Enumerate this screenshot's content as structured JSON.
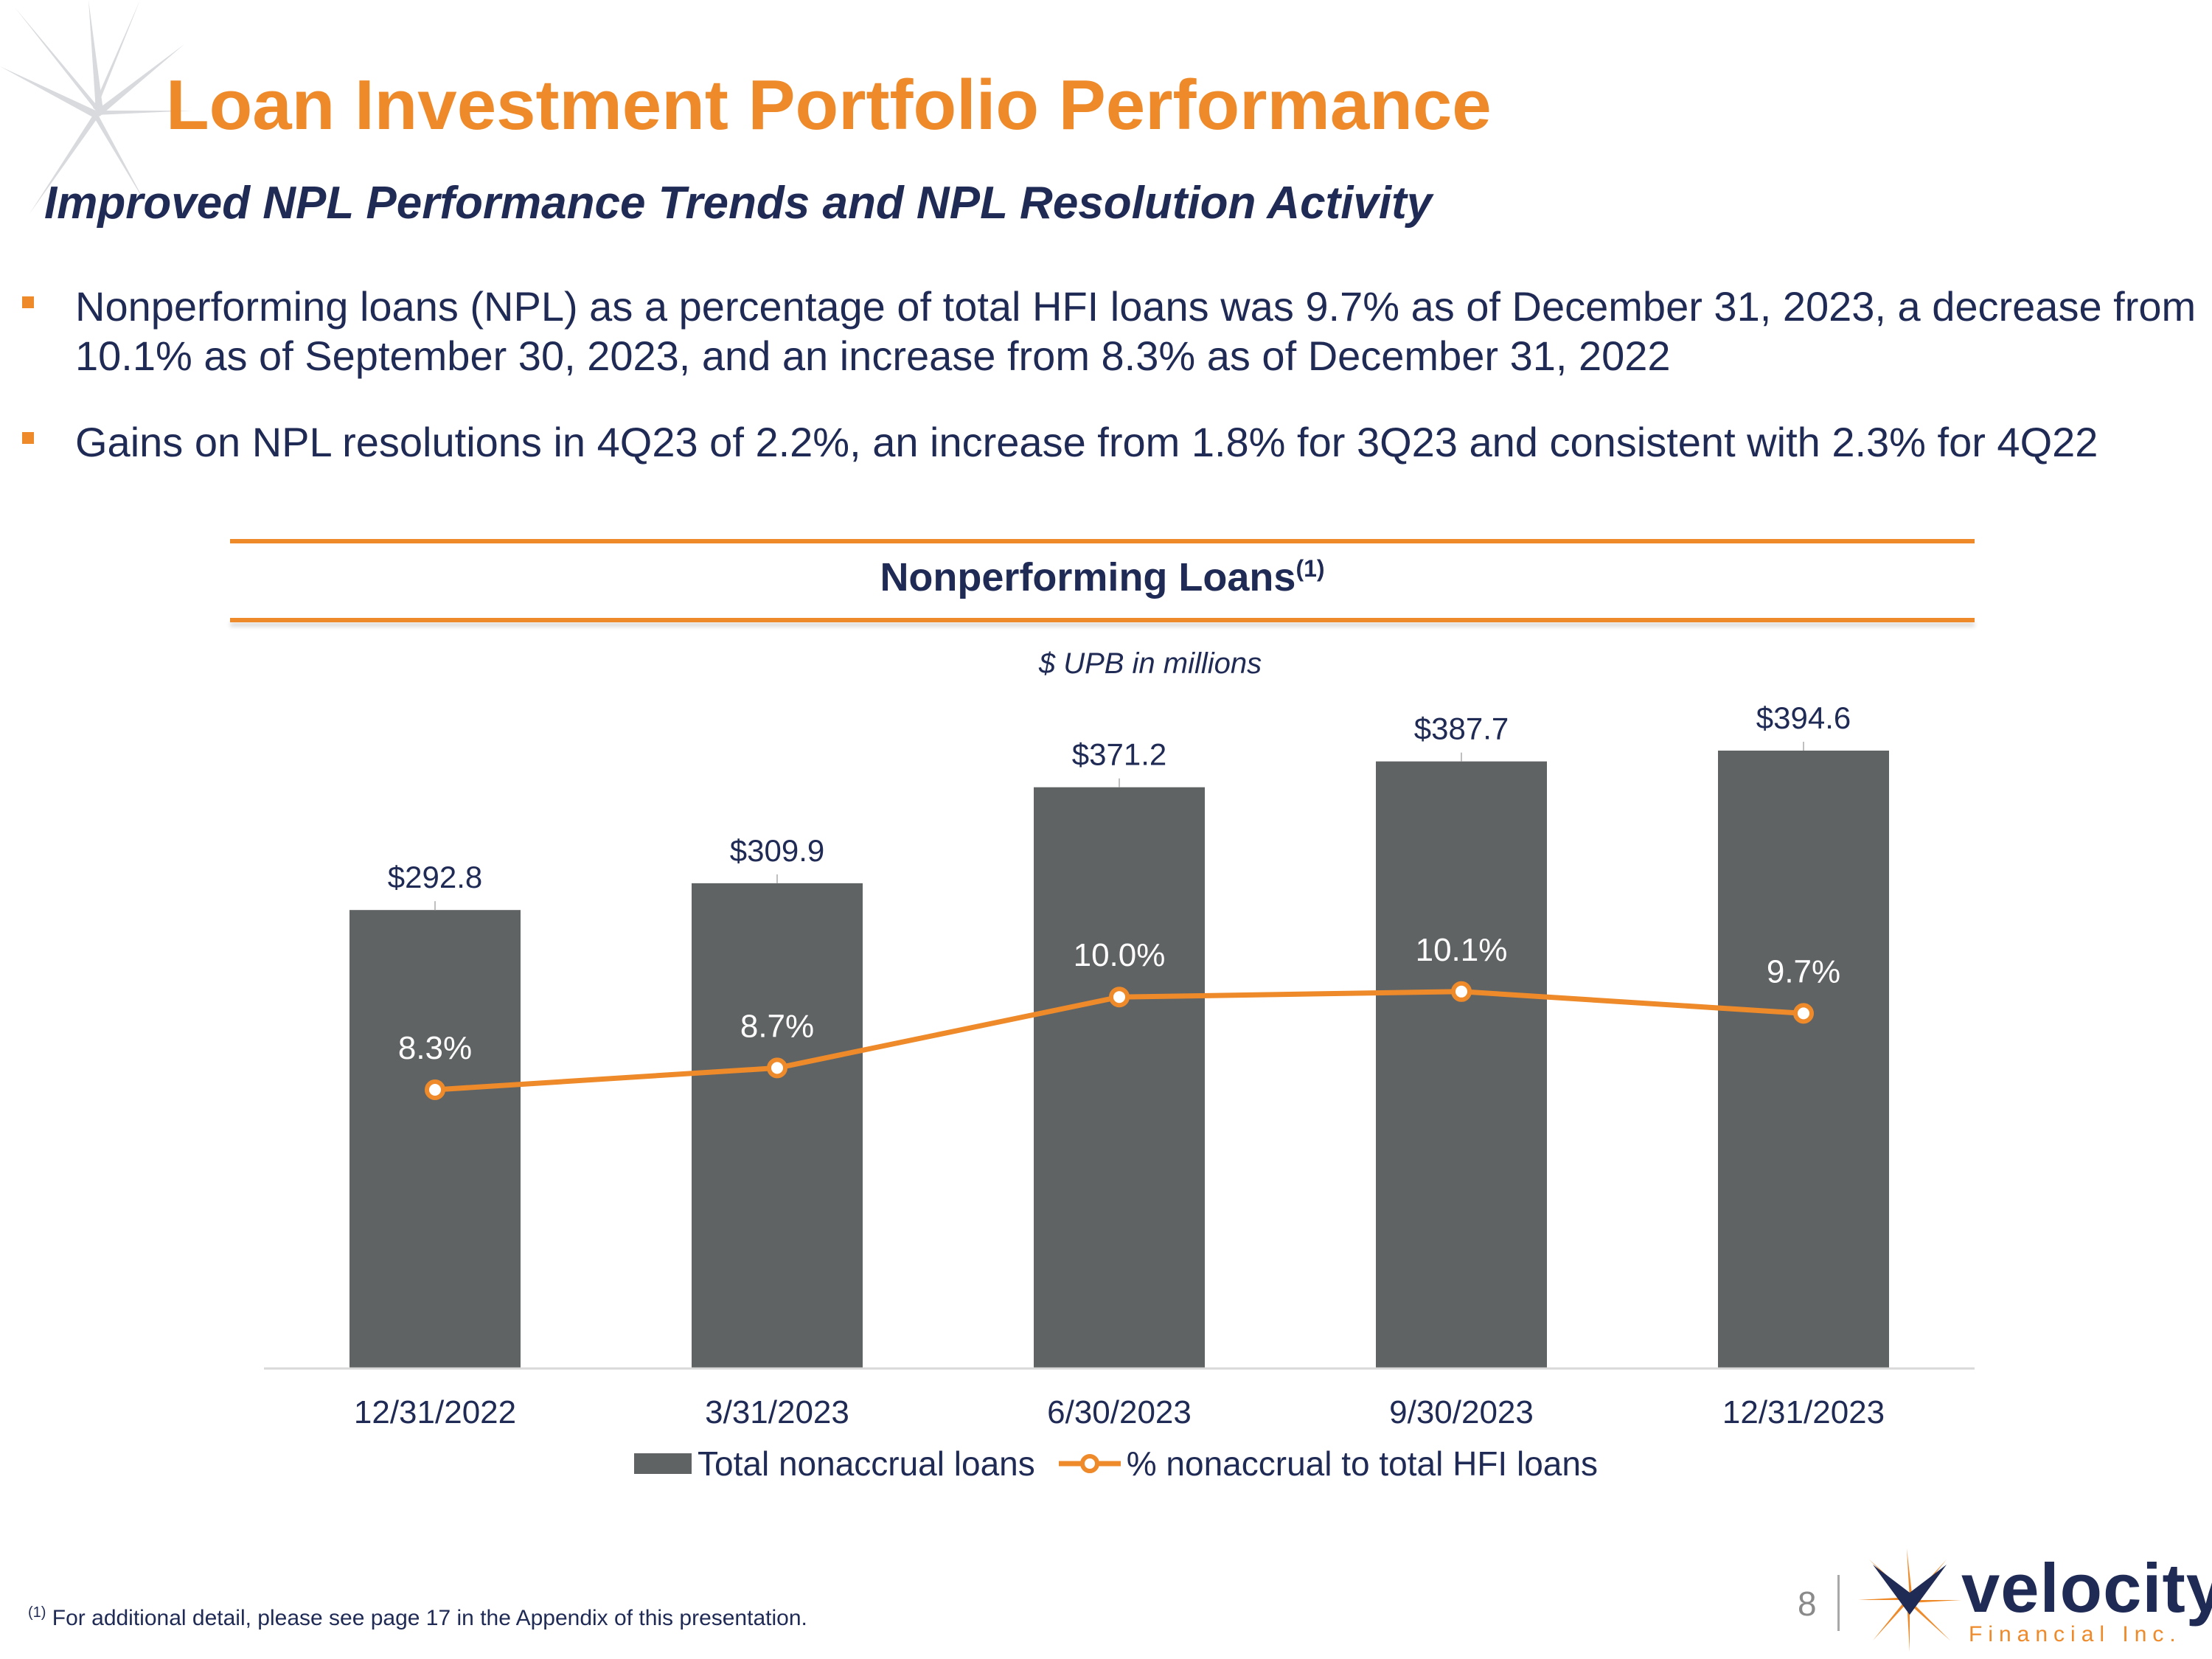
{
  "slide": {
    "title": "Loan Investment Portfolio Performance",
    "subtitle": "Improved NPL Performance Trends and NPL Resolution Activity",
    "bullets": [
      "Nonperforming loans (NPL) as a percentage of total HFI loans was 9.7% as of December 31, 2023, a decrease from 10.1% as of September 30, 2023, and an increase from 8.3% as of December 31, 2022",
      "Gains on NPL resolutions in 4Q23 of 2.2%, an increase from 1.8% for 3Q23 and consistent with 2.3% for 4Q22"
    ],
    "footnote_marker": "(1)",
    "footnote": "For additional detail, please see page 17 in the Appendix of this presentation.",
    "page_number": "8",
    "logo": {
      "word": "velocity",
      "sub": "Financial Inc."
    }
  },
  "colors": {
    "accent_orange": "#ee8a2a",
    "navy": "#1f2a55",
    "bar_gray": "#606364"
  },
  "chart_data": {
    "type": "bar",
    "title": "Nonperforming Loans",
    "title_superscript": "(1)",
    "note": "$ UPB in millions",
    "categories": [
      "12/31/2022",
      "3/31/2023",
      "6/30/2023",
      "9/30/2023",
      "12/31/2023"
    ],
    "series": [
      {
        "name": "Total nonaccrual loans",
        "type": "bar",
        "values": [
          292.8,
          309.9,
          371.2,
          387.7,
          394.6
        ],
        "labels": [
          "$292.8",
          "$309.9",
          "$371.2",
          "$387.7",
          "$394.6"
        ],
        "color": "#606364"
      },
      {
        "name": "% nonaccrual to total HFI loans",
        "type": "line",
        "values": [
          8.3,
          8.7,
          10.0,
          10.1,
          9.7
        ],
        "labels": [
          "8.3%",
          "8.7%",
          "10.0%",
          "10.1%",
          "9.7%"
        ],
        "color": "#ee8a2a"
      }
    ],
    "legend_position": "bottom",
    "grid": false
  }
}
